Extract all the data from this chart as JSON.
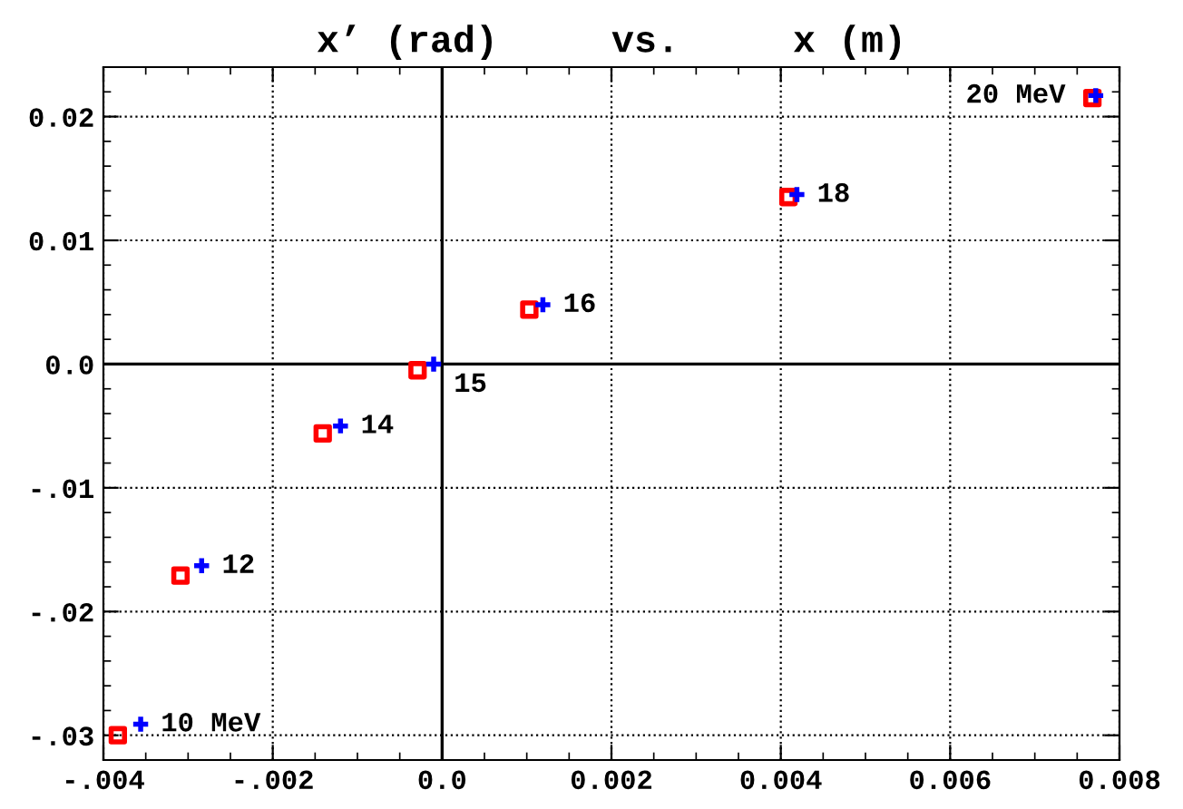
{
  "chart_data": {
    "type": "scatter",
    "title": "x’ (rad)     vs.     x (m)",
    "xlim": [
      -0.004,
      0.008
    ],
    "ylim": [
      -0.032,
      0.024
    ],
    "xticks": [
      {
        "value": -0.004,
        "label": "-.004"
      },
      {
        "value": -0.002,
        "label": "-.002"
      },
      {
        "value": 0,
        "label": "0.0"
      },
      0.002,
      0.004,
      0.006,
      0.008
    ],
    "yticks": [
      {
        "value": -0.03,
        "label": "-.03"
      },
      {
        "value": -0.02,
        "label": "-.02"
      },
      {
        "value": -0.01,
        "label": "-.01"
      },
      {
        "value": 0,
        "label": "0.0"
      },
      0.01,
      0.02
    ],
    "grid": true,
    "legend": false,
    "series": [
      {
        "color": "#ff0000",
        "marker": "square",
        "x": [
          -0.00383,
          -0.00309,
          -0.00141,
          -0.00029,
          0.00103,
          0.00409,
          0.00768
        ],
        "values": [
          -0.03,
          -0.0171,
          -0.0056,
          -0.0005,
          0.0044,
          0.0135,
          0.0215
        ]
      },
      {
        "color": "#0000ff",
        "marker": "cross",
        "x": [
          -0.00356,
          -0.00284,
          -0.0012,
          -0.0001,
          0.00119,
          0.00419,
          0.00772
        ],
        "values": [
          -0.0291,
          -0.0163,
          -0.005,
          0.0,
          0.0048,
          0.0137,
          0.0217
        ]
      }
    ],
    "annotations": [
      {
        "text": "10 MeV",
        "x": -0.00356,
        "y": -0.0291
      },
      {
        "text": "12",
        "x": -0.00284,
        "y": -0.0163
      },
      {
        "text": "14",
        "x": -0.0012,
        "y": -0.005
      },
      {
        "text": "15",
        "x": -0.0001,
        "y": 0.0
      },
      {
        "text": "16",
        "x": 0.00119,
        "y": 0.0048
      },
      {
        "text": "18",
        "x": 0.00419,
        "y": 0.0137
      },
      {
        "text": "20 MeV",
        "x": 0.00772,
        "y": 0.0217
      }
    ]
  }
}
